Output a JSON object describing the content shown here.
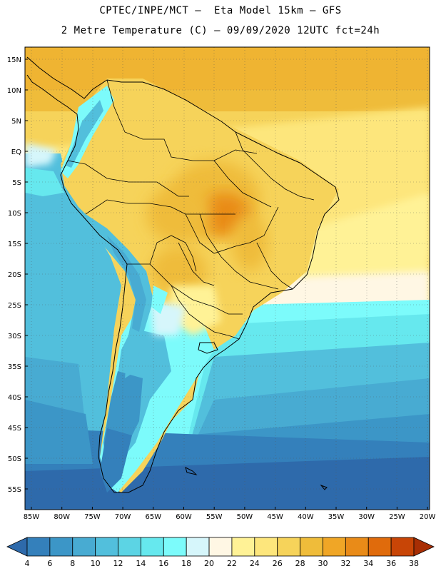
{
  "header": {
    "line1": "CPTEC/INPE/MCT –  Eta Model 15km – GFS",
    "line2": "2 Metre Temperature (C) – 09/09/2020 12UTC fct=24h"
  },
  "map": {
    "lat_labels": [
      "15N",
      "10N",
      "5N",
      "EQ",
      "5S",
      "10S",
      "15S",
      "20S",
      "25S",
      "30S",
      "35S",
      "40S",
      "45S",
      "50S",
      "55S"
    ],
    "lon_labels": [
      "85W",
      "80W",
      "75W",
      "70W",
      "65W",
      "60W",
      "55W",
      "50W",
      "45W",
      "40W",
      "35W",
      "30W",
      "25W",
      "20W"
    ],
    "lat_range": [
      17,
      -58
    ],
    "lon_range": [
      -86,
      -20
    ]
  },
  "colorbar": {
    "labels": [
      "4",
      "6",
      "8",
      "10",
      "12",
      "14",
      "16",
      "18",
      "20",
      "22",
      "24",
      "26",
      "28",
      "30",
      "32",
      "34",
      "36",
      "38"
    ],
    "colors": [
      "#2e6aab",
      "#3480bb",
      "#3c96c7",
      "#48abd2",
      "#52bfdc",
      "#5cd4e4",
      "#66e8ee",
      "#7cfbfb",
      "#d6f6fb",
      "#fff7e4",
      "#fff296",
      "#fde67c",
      "#f6d35a",
      "#efbc3a",
      "#f0a626",
      "#e98b18",
      "#e06b0c",
      "#c84506",
      "#a82e04"
    ]
  }
}
